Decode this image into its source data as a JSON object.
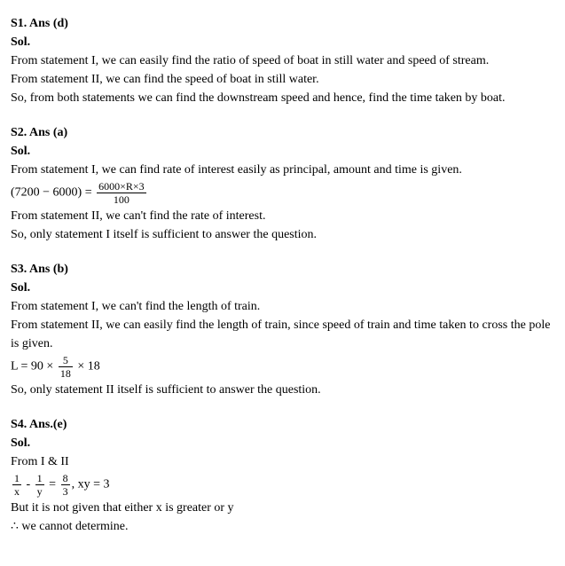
{
  "solutions": [
    {
      "id": "S1",
      "header": "S1. Ans (d)",
      "sol_label": "Sol.",
      "lines": [
        "From statement I, we can easily find the ratio of speed of boat in still water and speed of stream.",
        "From statement II, we can find the speed of boat in still water.",
        "So, from both statements we can find the downstream speed and hence, find the time taken by boat."
      ]
    },
    {
      "id": "S2",
      "header": "S2. Ans (a)",
      "sol_label": "Sol.",
      "lines": [
        "From statement I, we can find rate of interest easily as principal, amount and time is given."
      ],
      "formula": {
        "left": "(7200 − 6000) = ",
        "num": "6000×R×3",
        "den": "100"
      },
      "lines_after": [
        "From statement II, we can't find the rate of interest.",
        "So, only statement I itself is sufficient to answer the question."
      ]
    },
    {
      "id": "S3",
      "header": "S3. Ans (b)",
      "sol_label": "Sol.",
      "lines": [
        "From statement I, we can't find the length of train.",
        "From statement II, we can easily find the length of train, since speed of train and time taken to cross the pole is given."
      ],
      "formula2": {
        "prefix": " L = 90 × ",
        "num": "5",
        "den": "18",
        "suffix": " × 18"
      },
      "lines_after": [
        "So, only statement II itself is sufficient to answer the question."
      ]
    },
    {
      "id": "S4",
      "header": "S4. Ans.(e)",
      "sol_label": "Sol.",
      "lines": [
        "From I & II"
      ],
      "formula3": {
        "f1_num": "1",
        "f1_den": "x",
        "minus": " - ",
        "f2_num": "1",
        "f2_den": "y",
        "eq": " = ",
        "f3_num": "8",
        "f3_den": "3",
        "suffix": ", xy = 3"
      },
      "lines_after": [
        "But it is not given that either x is greater or y",
        "∴ we cannot determine."
      ]
    }
  ]
}
